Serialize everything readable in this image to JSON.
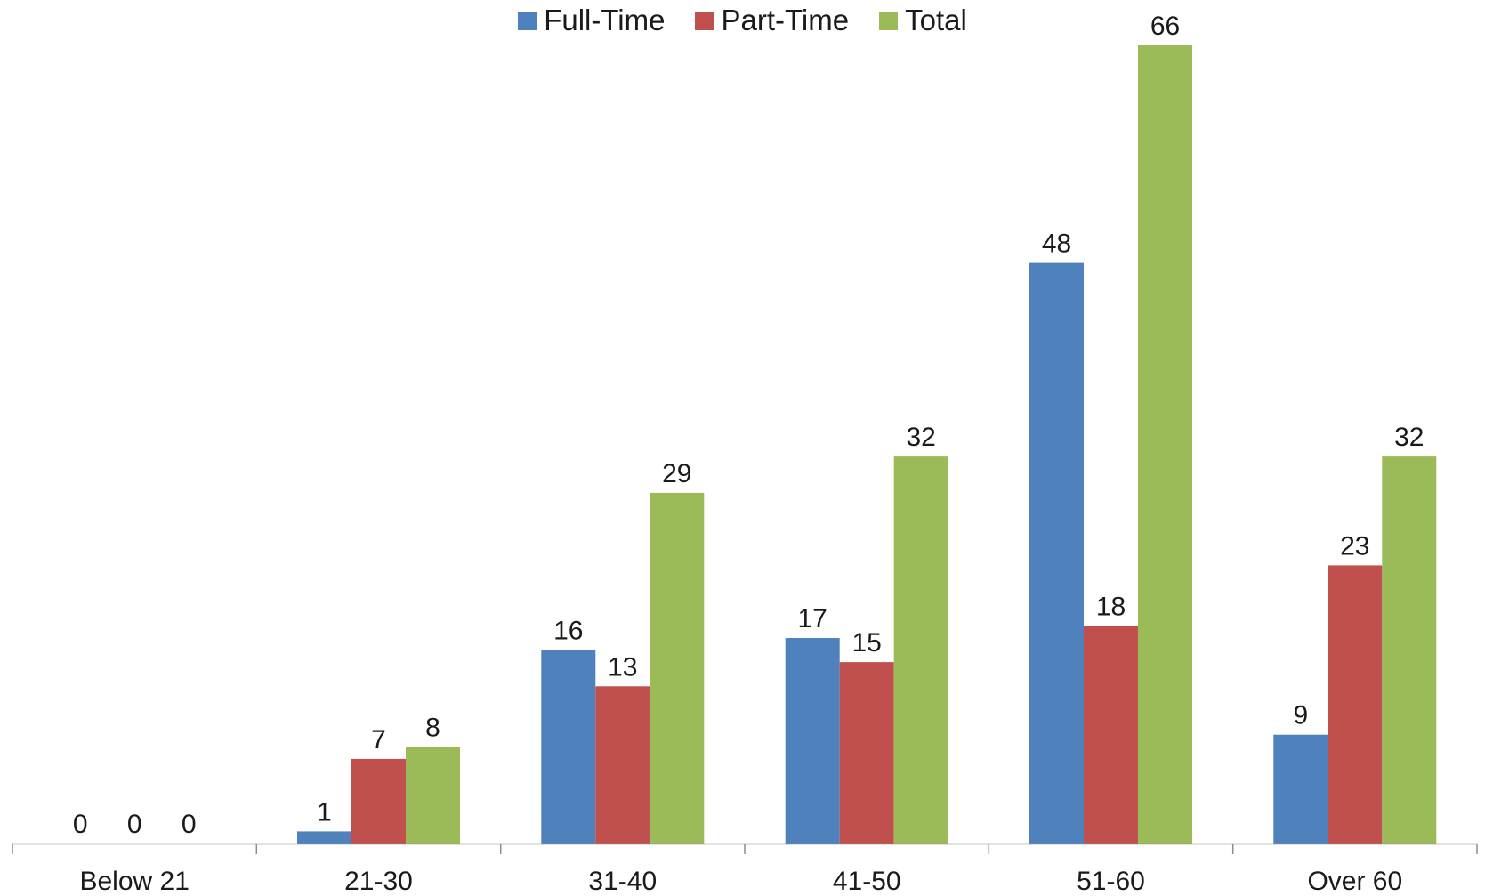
{
  "chart_data": {
    "type": "bar",
    "title": "",
    "xlabel": "",
    "ylabel": "",
    "categories": [
      "Below 21",
      "21-30",
      "31-40",
      "41-50",
      "51-60",
      "Over 60"
    ],
    "series": [
      {
        "name": "Full-Time",
        "color": "#4F81BD",
        "values": [
          0,
          1,
          16,
          17,
          48,
          9
        ]
      },
      {
        "name": "Part-Time",
        "color": "#C0504D",
        "values": [
          0,
          7,
          13,
          15,
          18,
          23
        ]
      },
      {
        "name": "Total",
        "color": "#9BBB59",
        "values": [
          0,
          8,
          29,
          32,
          66,
          32
        ]
      }
    ],
    "ylim": [
      0,
      66
    ],
    "grid": false,
    "legend_position": "top-center",
    "data_labels": true
  }
}
